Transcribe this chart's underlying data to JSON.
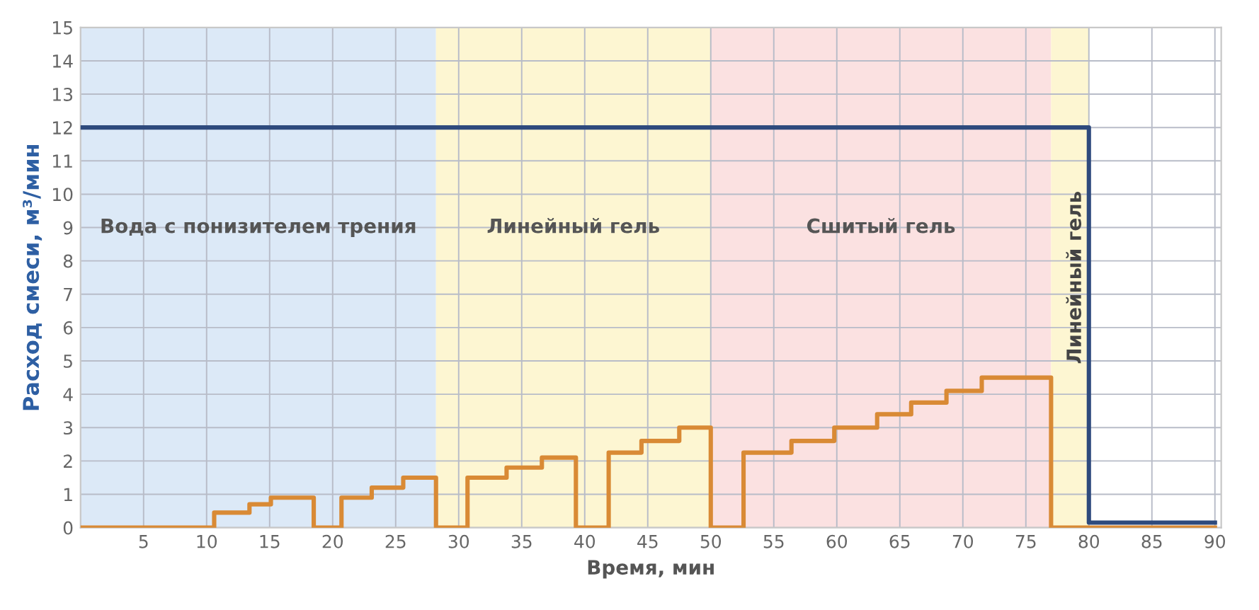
{
  "chart_data": {
    "type": "step",
    "xlabel": "Время, мин",
    "ylabel": "Расход смеси, м³/мин",
    "xlim": [
      0,
      90.5
    ],
    "ylim": [
      0,
      15
    ],
    "xticks": [
      5,
      10,
      15,
      20,
      25,
      30,
      35,
      40,
      45,
      50,
      55,
      60,
      65,
      70,
      75,
      80,
      85,
      90
    ],
    "yticks": [
      0,
      1,
      2,
      3,
      4,
      5,
      6,
      7,
      8,
      9,
      10,
      11,
      12,
      13,
      14,
      15
    ],
    "grid": true,
    "marker": "none",
    "line_style": "solid",
    "series": [
      {
        "color": "#2e4a7d",
        "x": [
          0,
          80,
          90
        ],
        "values": [
          12,
          0.15,
          0.15
        ]
      },
      {
        "color": "#d98a35",
        "x": [
          0,
          10.6,
          13.4,
          15.1,
          18.5,
          20.7,
          23.1,
          25.6,
          28.2,
          30.7,
          33.8,
          36.6,
          39.3,
          41.9,
          44.5,
          47.5,
          50,
          52.6,
          56.4,
          59.8,
          63.2,
          65.9,
          68.7,
          71.5,
          77,
          90
        ],
        "values": [
          0,
          0.45,
          0.7,
          0.9,
          0,
          0.9,
          1.2,
          1.5,
          0,
          1.5,
          1.8,
          2.1,
          0,
          2.25,
          2.6,
          3.0,
          0,
          2.25,
          2.6,
          3.0,
          3.4,
          3.75,
          4.1,
          4.5,
          0,
          0
        ]
      }
    ],
    "bands": [
      {
        "axis": "x",
        "from": 0,
        "to": 28.2,
        "label": "Вода с понизителем трения",
        "color": "#dce9f7"
      },
      {
        "axis": "x",
        "from": 28.2,
        "to": 50,
        "label": "Линейный гель",
        "color": "#fdf6d2"
      },
      {
        "axis": "x",
        "from": 50,
        "to": 77,
        "label": "Сшитый гель",
        "color": "#fbe1e1"
      },
      {
        "axis": "x",
        "from": 77,
        "to": 80,
        "label": "Линейный гель",
        "color": "#fdf6d2"
      }
    ]
  }
}
